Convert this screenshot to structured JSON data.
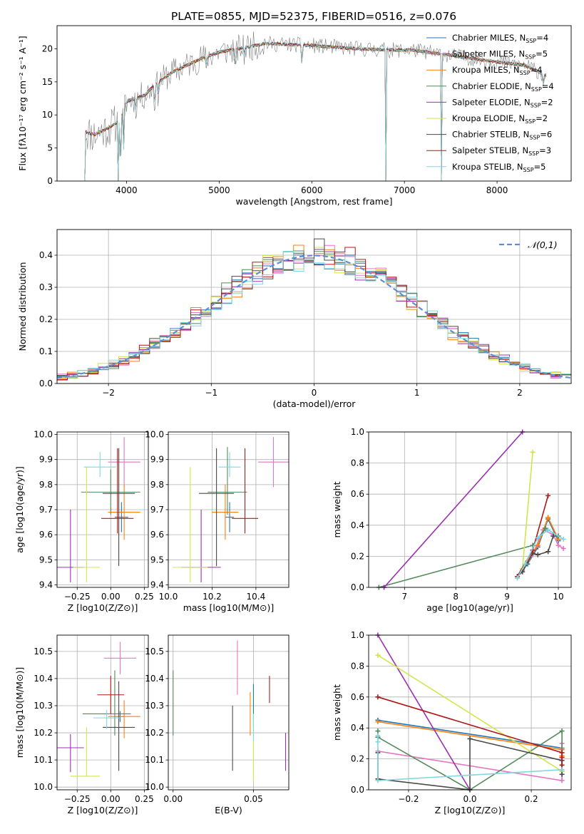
{
  "title": "PLATE=0855, MJD=52375, FIBERID=0516, z=0.076",
  "models": [
    {
      "name": "Chabrier MILES, N_SSP=4",
      "base": "Chabrier MILES, N",
      "sub": "SSP",
      "tail": "=4",
      "color": "#1f77b4"
    },
    {
      "name": "Salpeter MILES, N_SSP=5",
      "base": "Salpeter MILES, N",
      "sub": "SSP",
      "tail": "=5",
      "color": "#e377c2"
    },
    {
      "name": "Kroupa MILES, N_SSP=4",
      "base": "Kroupa MILES, N",
      "sub": "SSP",
      "tail": "=4",
      "color": "#ff7f0e"
    },
    {
      "name": "Chabrier ELODIE, N_SSP=4",
      "base": "Chabrier ELODIE, N",
      "sub": "SSP",
      "tail": "=4",
      "color": "#548b5c"
    },
    {
      "name": "Salpeter ELODIE, N_SSP=2",
      "base": "Salpeter ELODIE, N",
      "sub": "SSP",
      "tail": "=2",
      "color": "#9b30b0"
    },
    {
      "name": "Kroupa ELODIE, N_SSP=2",
      "base": "Kroupa ELODIE, N",
      "sub": "SSP",
      "tail": "=2",
      "color": "#d2e64c"
    },
    {
      "name": "Chabrier STELIB, N_SSP=6",
      "base": "Chabrier STELIB, N",
      "sub": "SSP",
      "tail": "=6",
      "color": "#4a4a4a"
    },
    {
      "name": "Salpeter STELIB, N_SSP=3",
      "base": "Salpeter STELIB, N",
      "sub": "SSP",
      "tail": "=3",
      "color": "#b01818"
    },
    {
      "name": "Kroupa STELIB, N_SSP=5",
      "base": "Kroupa STELIB, N",
      "sub": "SSP",
      "tail": "=5",
      "color": "#7fd8e0"
    }
  ],
  "chart_data": [
    {
      "id": "spectrum",
      "type": "line",
      "xlabel": "wavelength [Angstrom, rest frame]",
      "ylabel": "Flux [fλ10⁻¹⁷ erg cm⁻² s⁻¹ A⁻¹]",
      "xlim": [
        3250,
        8800
      ],
      "ylim": [
        0,
        23.5
      ],
      "xticks": [
        4000,
        5000,
        6000,
        7000,
        8000
      ],
      "yticks": [
        0,
        5,
        10,
        15,
        20
      ],
      "grid": false,
      "legend": "right",
      "x_start": 3550,
      "x_end": 8530,
      "x_step": 10,
      "continuum": [
        [
          3550,
          7.5
        ],
        [
          3650,
          7.0
        ],
        [
          3800,
          8.0
        ],
        [
          3920,
          9.0
        ],
        [
          4000,
          12.0
        ],
        [
          4200,
          13.0
        ],
        [
          4300,
          14.5
        ],
        [
          4500,
          16.5
        ],
        [
          4800,
          18.5
        ],
        [
          5000,
          19.5
        ],
        [
          5200,
          20.0
        ],
        [
          5500,
          20.8
        ],
        [
          6000,
          20.5
        ],
        [
          6500,
          20.0
        ],
        [
          6900,
          19.8
        ],
        [
          7100,
          19.8
        ],
        [
          7500,
          19.0
        ],
        [
          8000,
          18.0
        ],
        [
          8300,
          17.5
        ],
        [
          8530,
          16.0
        ]
      ],
      "absorption_lines": [
        {
          "w": 3934,
          "depth": 7.0
        },
        {
          "w": 3969,
          "depth": 6.0
        },
        {
          "w": 4101,
          "depth": 1.5
        },
        {
          "w": 4304,
          "depth": 3.0
        },
        {
          "w": 4340,
          "depth": 1.5
        },
        {
          "w": 4861,
          "depth": 1.5
        },
        {
          "w": 5175,
          "depth": 3.0
        },
        {
          "w": 5270,
          "depth": 1.0
        },
        {
          "w": 5893,
          "depth": 2.5
        },
        {
          "w": 8498,
          "depth": 1.5
        }
      ],
      "bad_pixels": [
        {
          "x": 3550,
          "series": "all"
        },
        {
          "x": 3910,
          "series": "all"
        },
        {
          "x": 6800,
          "series": "all"
        },
        {
          "x": 7400,
          "series": "all"
        }
      ]
    },
    {
      "id": "residuals",
      "type": "step-histogram",
      "xlabel": "(data-model)/error",
      "ylabel": "Normed distribution",
      "xlim": [
        -2.5,
        2.5
      ],
      "ylim": [
        0,
        0.48
      ],
      "xticks": [
        -2,
        -1,
        0,
        1,
        2
      ],
      "yticks": [
        0.0,
        0.1,
        0.2,
        0.3,
        0.4
      ],
      "grid": true,
      "legend": "top-right",
      "bin_width": 0.1,
      "normal_curve": {
        "label": "𝒩(0,1)",
        "mu": 0,
        "sigma": 1,
        "color": "#5b8fd6"
      },
      "bins_center_start": -2.45,
      "bins": 50
    },
    {
      "id": "age-vs-Z",
      "type": "errorbar",
      "xlabel": "Z [log10(Z/Z⊙)]",
      "ylabel": "age [log10(age/yr)]",
      "xlim": [
        -0.4,
        0.28
      ],
      "ylim": [
        9.39,
        10.01
      ],
      "xticks": [
        -0.25,
        0.0,
        0.25
      ],
      "yticks": [
        9.4,
        9.5,
        9.6,
        9.7,
        9.8,
        9.9,
        10.0
      ],
      "grid": true,
      "points": [
        {
          "series": 0,
          "x": 0.08,
          "xerr": [
            0.05,
            0.05
          ],
          "y": 9.67,
          "yerr": [
            0.06,
            0.06
          ]
        },
        {
          "series": 1,
          "x": 0.1,
          "xerr": [
            0.12,
            0.12
          ],
          "y": 9.89,
          "yerr": [
            0.1,
            0.1
          ]
        },
        {
          "series": 2,
          "x": 0.1,
          "xerr": [
            0.12,
            0.12
          ],
          "y": 9.69,
          "yerr": [
            0.11,
            0.11
          ]
        },
        {
          "series": 3,
          "x": 0.0,
          "xerr": [
            0.22,
            0.22
          ],
          "y": 9.77,
          "yerr": [
            0.09,
            0.09
          ]
        },
        {
          "series": 4,
          "x": -0.3,
          "xerr": [
            0.1,
            0.1
          ],
          "y": 9.47,
          "yerr": [
            0.06,
            0.23
          ]
        },
        {
          "series": 5,
          "x": -0.18,
          "xerr": [
            0.1,
            0.1
          ],
          "y": 9.47,
          "yerr": [
            0.06,
            0.4
          ]
        },
        {
          "series": 6,
          "x": 0.06,
          "xerr": [
            0.12,
            0.12
          ],
          "y": 9.765,
          "yerr": [
            0.29,
            0.18
          ]
        },
        {
          "series": 7,
          "x": 0.05,
          "xerr": [
            0.12,
            0.12
          ],
          "y": 9.665,
          "yerr": [
            0.06,
            0.28
          ]
        },
        {
          "series": 8,
          "x": -0.08,
          "xerr": [
            0.12,
            0.12
          ],
          "y": 9.87,
          "yerr": [
            0.04,
            0.06
          ]
        }
      ]
    },
    {
      "id": "age-vs-mass",
      "type": "errorbar",
      "xlabel": "mass [log10(M/M⊙)]",
      "ylabel": "",
      "xlim": [
        10.0,
        10.55
      ],
      "ylim": [
        9.39,
        10.01
      ],
      "xticks": [
        10.0,
        10.2,
        10.4
      ],
      "yticks": [
        9.4,
        9.5,
        9.6,
        9.7,
        9.8,
        9.9,
        10.0
      ],
      "grid": true,
      "points": [
        {
          "series": 0,
          "x": 10.28,
          "xerr": [
            0.02,
            0.02
          ],
          "y": 9.67,
          "yerr": [
            0.06,
            0.06
          ]
        },
        {
          "series": 1,
          "x": 10.48,
          "xerr": [
            0.07,
            0.07
          ],
          "y": 9.89,
          "yerr": [
            0.1,
            0.1
          ]
        },
        {
          "series": 2,
          "x": 10.26,
          "xerr": [
            0.06,
            0.06
          ],
          "y": 9.69,
          "yerr": [
            0.11,
            0.11
          ]
        },
        {
          "series": 3,
          "x": 10.27,
          "xerr": [
            0.09,
            0.09
          ],
          "y": 9.77,
          "yerr": [
            0.09,
            0.18
          ]
        },
        {
          "series": 4,
          "x": 10.15,
          "xerr": [
            0.09,
            0.09
          ],
          "y": 9.47,
          "yerr": [
            0.06,
            0.23
          ]
        },
        {
          "series": 5,
          "x": 10.1,
          "xerr": [
            0.08,
            0.08
          ],
          "y": 9.47,
          "yerr": [
            0.06,
            0.4
          ]
        },
        {
          "series": 6,
          "x": 10.22,
          "xerr": [
            0.08,
            0.08
          ],
          "y": 9.765,
          "yerr": [
            0.29,
            0.18
          ]
        },
        {
          "series": 7,
          "x": 10.35,
          "xerr": [
            0.06,
            0.06
          ],
          "y": 9.665,
          "yerr": [
            0.06,
            0.28
          ]
        },
        {
          "series": 8,
          "x": 10.28,
          "xerr": [
            0.05,
            0.05
          ],
          "y": 9.87,
          "yerr": [
            0.04,
            0.06
          ]
        }
      ]
    },
    {
      "id": "massweight-vs-age",
      "type": "line",
      "xlabel": "age [log10(age/yr)]",
      "ylabel": "mass weight",
      "xlim": [
        6.3,
        10.25
      ],
      "ylim": [
        0,
        1.0
      ],
      "xticks": [
        7,
        8,
        9,
        10
      ],
      "yticks": [
        0.0,
        0.2,
        0.4,
        0.6,
        0.8,
        1.0
      ],
      "grid": true,
      "series": [
        {
          "series": 0,
          "x": [
            9.2,
            9.4,
            9.6,
            9.8,
            10.0
          ],
          "y": [
            0.07,
            0.15,
            0.26,
            0.44,
            0.3
          ]
        },
        {
          "series": 1,
          "x": [
            9.3,
            9.5,
            9.7,
            9.9,
            10.0,
            10.1
          ],
          "y": [
            0.11,
            0.21,
            0.37,
            0.34,
            0.27,
            0.25
          ]
        },
        {
          "series": 2,
          "x": [
            9.2,
            9.4,
            9.6,
            9.8,
            10.0
          ],
          "y": [
            0.06,
            0.17,
            0.27,
            0.45,
            0.31
          ]
        },
        {
          "series": 3,
          "x": [
            6.5,
            9.5,
            9.75,
            10.0
          ],
          "y": [
            0.0,
            0.27,
            0.38,
            0.33
          ]
        },
        {
          "series": 4,
          "x": [
            6.6,
            9.3
          ],
          "y": [
            0.0,
            1.0
          ]
        },
        {
          "series": 5,
          "x": [
            9.3,
            9.5
          ],
          "y": [
            0.12,
            0.87
          ]
        },
        {
          "series": 6,
          "x": [
            9.2,
            9.3,
            9.5,
            9.6,
            9.8,
            9.9
          ],
          "y": [
            0.07,
            0.1,
            0.22,
            0.21,
            0.23,
            0.33
          ]
        },
        {
          "series": 7,
          "x": [
            9.2,
            9.5,
            9.8
          ],
          "y": [
            0.07,
            0.24,
            0.59
          ]
        },
        {
          "series": 8,
          "x": [
            9.2,
            9.35,
            9.6,
            9.8,
            10.1
          ],
          "y": [
            0.06,
            0.15,
            0.32,
            0.37,
            0.31
          ]
        }
      ]
    },
    {
      "id": "mass-vs-Z",
      "type": "errorbar",
      "xlabel": "Z [log10(Z/Z⊙)]",
      "ylabel": "mass [log10(M/M⊙)]",
      "xlim": [
        -0.4,
        0.28
      ],
      "ylim": [
        9.99,
        10.56
      ],
      "xticks": [
        -0.25,
        0.0,
        0.25
      ],
      "yticks": [
        10.0,
        10.1,
        10.2,
        10.3,
        10.4,
        10.5
      ],
      "grid": true,
      "points": [
        {
          "series": 0,
          "x": 0.07,
          "xerr": [
            0.03,
            0.03
          ],
          "y": 10.26,
          "yerr": [
            0.02,
            0.02
          ]
        },
        {
          "series": 1,
          "x": 0.07,
          "xerr": [
            0.12,
            0.12
          ],
          "y": 10.475,
          "yerr": [
            0.06,
            0.06
          ]
        },
        {
          "series": 2,
          "x": 0.1,
          "xerr": [
            0.12,
            0.12
          ],
          "y": 10.26,
          "yerr": [
            0.08,
            0.06
          ]
        },
        {
          "series": 3,
          "x": 0.03,
          "xerr": [
            0.24,
            0.12
          ],
          "y": 10.27,
          "yerr": [
            0.08,
            0.16
          ]
        },
        {
          "series": 4,
          "x": -0.3,
          "xerr": [
            0.1,
            0.1
          ],
          "y": 10.145,
          "yerr": [
            0.09,
            0.05
          ]
        },
        {
          "series": 5,
          "x": -0.18,
          "xerr": [
            0.12,
            0.1
          ],
          "y": 10.04,
          "yerr": [
            0.0,
            0.18
          ]
        },
        {
          "series": 6,
          "x": 0.06,
          "xerr": [
            0.12,
            0.12
          ],
          "y": 10.22,
          "yerr": [
            0.16,
            0.17
          ]
        },
        {
          "series": 7,
          "x": 0.0,
          "xerr": [
            0.1,
            0.1
          ],
          "y": 10.34,
          "yerr": [
            0.07,
            0.07
          ]
        },
        {
          "series": 8,
          "x": -0.03,
          "xerr": [
            0.1,
            0.1
          ],
          "y": 10.255,
          "yerr": [
            0.04,
            0.03
          ]
        }
      ]
    },
    {
      "id": "mass-vs-EBV",
      "type": "errorbar",
      "xlabel": "E(B-V)",
      "ylabel": "",
      "xlim": [
        -0.003,
        0.072
      ],
      "ylim": [
        9.99,
        10.56
      ],
      "xticks": [
        0.0,
        0.05
      ],
      "yticks": [
        10.0,
        10.1,
        10.2,
        10.3,
        10.4,
        10.5
      ],
      "grid": true,
      "points": [
        {
          "series": 0,
          "x": 0.05,
          "xerr": [
            0,
            0
          ],
          "y": 10.3,
          "yerr": [
            0.08,
            0.08
          ]
        },
        {
          "series": 1,
          "x": 0.04,
          "xerr": [
            0,
            0
          ],
          "y": 10.44,
          "yerr": [
            0.1,
            0.1
          ]
        },
        {
          "series": 2,
          "x": 0.048,
          "xerr": [
            0,
            0
          ],
          "y": 10.27,
          "yerr": [
            0.08,
            0.08
          ]
        },
        {
          "series": 3,
          "x": 0.0,
          "xerr": [
            0,
            0
          ],
          "y": 10.31,
          "yerr": [
            0.12,
            0.12
          ]
        },
        {
          "series": 4,
          "x": 0.07,
          "xerr": [
            0,
            0
          ],
          "y": 10.13,
          "yerr": [
            0.07,
            0.07
          ]
        },
        {
          "series": 5,
          "x": 0.05,
          "xerr": [
            0,
            0
          ],
          "y": 10.14,
          "yerr": [
            0.12,
            0.12
          ]
        },
        {
          "series": 6,
          "x": 0.037,
          "xerr": [
            0,
            0
          ],
          "y": 10.18,
          "yerr": [
            0.12,
            0.12
          ]
        },
        {
          "series": 7,
          "x": 0.06,
          "xerr": [
            0,
            0
          ],
          "y": 10.36,
          "yerr": [
            0.05,
            0.05
          ]
        },
        {
          "series": 8,
          "x": 0.05,
          "xerr": [
            0,
            0
          ],
          "y": 10.22,
          "yerr": [
            0.05,
            0.05
          ]
        }
      ]
    },
    {
      "id": "massweight-vs-Z",
      "type": "line",
      "xlabel": "Z [log10(Z/Z⊙)]",
      "ylabel": "mass weight",
      "xlim": [
        -0.33,
        0.33
      ],
      "ylim": [
        0,
        1.0
      ],
      "xticks": [
        -0.2,
        0.0,
        0.2
      ],
      "yticks": [
        0.0,
        0.2,
        0.4,
        0.6,
        0.8,
        1.0
      ],
      "grid": true,
      "series": [
        {
          "series": 0,
          "x": [
            -0.3,
            0.3,
            0.3
          ],
          "y": [
            0.45,
            0.27,
            0.26
          ]
        },
        {
          "series": 1,
          "x": [
            -0.3,
            0.3,
            0.3,
            0.3
          ],
          "y": [
            0.25,
            0.06,
            0.27,
            0.3
          ]
        },
        {
          "series": 2,
          "x": [
            -0.3,
            0.3,
            0.3
          ],
          "y": [
            0.44,
            0.26,
            0.22
          ]
        },
        {
          "series": 3,
          "x": [
            -0.3,
            -0.3,
            0.0,
            0.3,
            0.3
          ],
          "y": [
            0.38,
            0.34,
            0.0,
            0.38,
            0.12
          ]
        },
        {
          "series": 4,
          "x": [
            -0.3,
            0.0
          ],
          "y": [
            1.0,
            0.0
          ]
        },
        {
          "series": 5,
          "x": [
            -0.3,
            0.3
          ],
          "y": [
            0.87,
            0.12
          ]
        },
        {
          "series": 6,
          "x": [
            -0.3,
            -0.3,
            0.0,
            0.0,
            0.3,
            0.3
          ],
          "y": [
            0.24,
            0.07,
            0.0,
            0.33,
            0.19,
            0.1
          ]
        },
        {
          "series": 7,
          "x": [
            -0.3,
            0.3,
            0.3,
            0.3
          ],
          "y": [
            0.6,
            0.24,
            0.16,
            0.21
          ]
        },
        {
          "series": 8,
          "x": [
            -0.3,
            -0.3,
            -0.3,
            0.3
          ],
          "y": [
            0.35,
            0.31,
            0.06,
            0.13
          ]
        }
      ]
    }
  ]
}
